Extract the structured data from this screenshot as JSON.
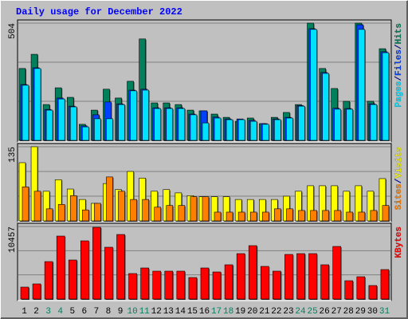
{
  "chart_data": {
    "type": "bar",
    "title": "Daily usage for December 2022",
    "categories": [
      "1",
      "2",
      "3",
      "4",
      "5",
      "6",
      "7",
      "8",
      "9",
      "10",
      "11",
      "12",
      "13",
      "14",
      "15",
      "16",
      "17",
      "18",
      "19",
      "20",
      "21",
      "22",
      "23",
      "24",
      "25",
      "26",
      "27",
      "28",
      "29",
      "30",
      "31"
    ],
    "category_colors": [
      "#000000",
      "#000000",
      "#00805c",
      "#00805c",
      "#000000",
      "#000000",
      "#000000",
      "#000000",
      "#000000",
      "#00805c",
      "#00805c",
      "#000000",
      "#000000",
      "#000000",
      "#000000",
      "#000000",
      "#00805c",
      "#00805c",
      "#000000",
      "#000000",
      "#000000",
      "#000000",
      "#000000",
      "#00805c",
      "#00805c",
      "#000000",
      "#000000",
      "#000000",
      "#000000",
      "#000000",
      "#00805c"
    ],
    "legend_separator": "/",
    "panels": [
      {
        "ylim": [
          0,
          504
        ],
        "yticks": [
          504
        ],
        "series": [
          {
            "name": "Hits",
            "color": "#00805c",
            "values": [
              309,
              370,
              154,
              226,
              185,
              69,
              130,
              220,
              182,
              254,
              436,
              161,
              161,
              154,
              130,
              127,
              113,
              99,
              82,
              96,
              72,
              99,
              120,
              154,
              504,
              309,
              223,
              168,
              504,
              168,
              394
            ]
          },
          {
            "name": "Files",
            "color": "#0040ff",
            "values": [
              240,
              312,
              133,
              182,
              147,
              62,
              110,
              165,
              157,
              216,
              220,
              140,
              140,
              140,
              113,
              127,
              100,
              92,
              92,
              86,
              72,
              92,
              99,
              150,
              480,
              292,
              138,
              137,
              497,
              157,
              381
            ]
          },
          {
            "name": "Pages",
            "color": "#00e0ff",
            "values": [
              237,
              309,
              130,
              178,
              144,
              58,
              93,
              93,
              154,
              213,
              216,
              137,
              137,
              137,
              110,
              75,
              96,
              89,
              89,
              82,
              69,
              89,
              96,
              147,
              477,
              288,
              134,
              134,
              477,
              154,
              377
            ]
          }
        ]
      },
      {
        "ylim": [
          0,
          135
        ],
        "yticks": [
          135
        ],
        "series": [
          {
            "name": "Visits",
            "color": "#ffff00",
            "values": [
              106,
              135,
              54,
              75,
              58,
              39,
              32,
              68,
              57,
              90,
              78,
              54,
              57,
              51,
              46,
              44,
              44,
              44,
              39,
              39,
              39,
              39,
              45,
              54,
              64,
              64,
              64,
              54,
              64,
              54,
              77
            ]
          },
          {
            "name": "Sites",
            "color": "#ff8000",
            "values": [
              62,
              54,
              22,
              30,
              46,
              20,
              32,
              80,
              54,
              39,
              39,
              25,
              28,
              28,
              44,
              44,
              16,
              16,
              16,
              16,
              16,
              22,
              22,
              19,
              19,
              19,
              19,
              16,
              16,
              19,
              28
            ]
          }
        ]
      },
      {
        "ylim": [
          0,
          10457
        ],
        "yticks": [
          10457
        ],
        "series": [
          {
            "name": "KBytes",
            "color": "#ff0000",
            "values": [
              1724,
              2183,
              5400,
              9077,
              5630,
              8388,
              10341,
              7469,
              9307,
              3677,
              4481,
              4022,
              4022,
              4022,
              3102,
              4481,
              3907,
              4941,
              6549,
              7698,
              4711,
              4022,
              6434,
              6549,
              6549,
              4941,
              7583,
              2643,
              3217,
              1953,
              4251
            ]
          }
        ]
      }
    ]
  }
}
